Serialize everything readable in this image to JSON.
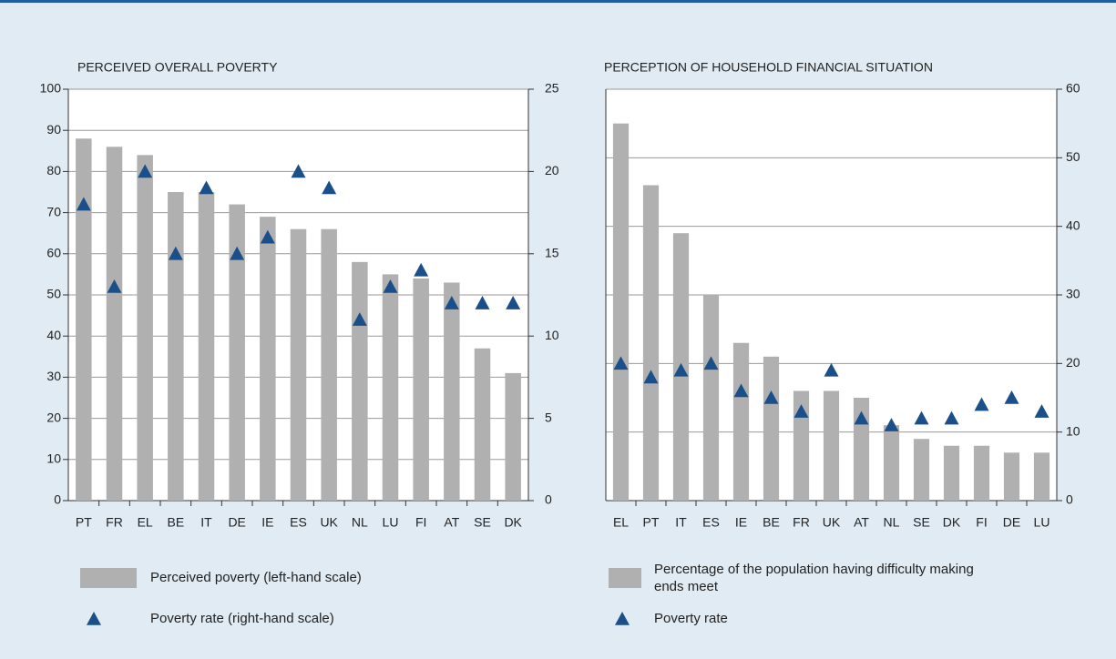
{
  "chart_data": [
    {
      "type": "bar",
      "title": "PERCEIVED OVERALL POVERTY",
      "categories": [
        "PT",
        "FR",
        "EL",
        "BE",
        "IT",
        "DE",
        "IE",
        "ES",
        "UK",
        "NL",
        "LU",
        "FI",
        "AT",
        "SE",
        "DK"
      ],
      "series": [
        {
          "name": "Perceived poverty (left-hand scale)",
          "color": "#b0b0b0",
          "values": [
            88,
            86,
            84,
            75,
            75,
            72,
            69,
            66,
            66,
            58,
            55,
            54,
            53,
            37,
            31
          ]
        },
        {
          "name": "Poverty rate (right-hand scale)",
          "color": "#1a4f8a",
          "type": "scatter",
          "marker": "triangle",
          "axis": "y2",
          "values": [
            18,
            13,
            20,
            15,
            19,
            15,
            16,
            20,
            19,
            11,
            13,
            14,
            12,
            12,
            12
          ]
        }
      ],
      "ylim": [
        0,
        100
      ],
      "yticks": [
        0,
        10,
        20,
        30,
        40,
        50,
        60,
        70,
        80,
        90,
        100
      ],
      "y2lim": [
        0,
        25
      ],
      "y2ticks": [
        0,
        5,
        10,
        15,
        20,
        25
      ],
      "grid": true
    },
    {
      "type": "bar",
      "title": "PERCEPTION OF HOUSEHOLD FINANCIAL SITUATION",
      "categories": [
        "EL",
        "PT",
        "IT",
        "ES",
        "IE",
        "BE",
        "FR",
        "UK",
        "AT",
        "NL",
        "SE",
        "DK",
        "FI",
        "DE",
        "LU"
      ],
      "series": [
        {
          "name": "Percentage of the population having difficulty making ends meet",
          "color": "#b0b0b0",
          "values": [
            55,
            46,
            39,
            30,
            23,
            21,
            16,
            16,
            15,
            11,
            9,
            8,
            8,
            7,
            7
          ]
        },
        {
          "name": "Poverty rate",
          "color": "#1a4f8a",
          "type": "scatter",
          "marker": "triangle",
          "values": [
            20,
            18,
            19,
            20,
            16,
            15,
            13,
            19,
            12,
            11,
            12,
            12,
            14,
            15,
            13
          ]
        }
      ],
      "ylim": [
        0,
        60
      ],
      "yticks": [
        0,
        10,
        20,
        30,
        40,
        50,
        60
      ],
      "y_axis_position": "right",
      "grid": true
    }
  ]
}
